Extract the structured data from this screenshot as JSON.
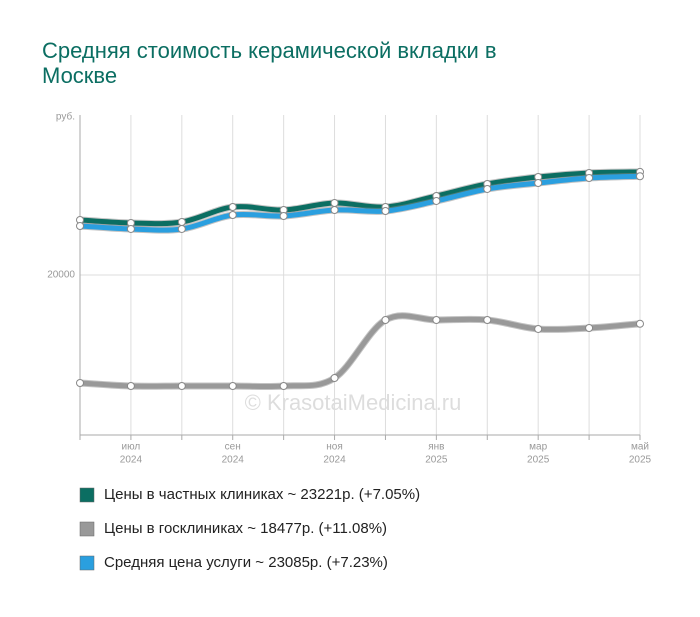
{
  "chart_data": {
    "type": "line",
    "title": [
      "Средняя стоимость керамической вкладки в",
      "Москве"
    ],
    "y_label": "руб.",
    "watermark": "© KrasotaiMedicina.ru",
    "categories": [
      null,
      {
        "month": "июл",
        "year": "2024"
      },
      null,
      {
        "month": "сен",
        "year": "2024"
      },
      null,
      {
        "month": "ноя",
        "year": "2024"
      },
      null,
      {
        "month": "янв",
        "year": "2025"
      },
      null,
      {
        "month": "мар",
        "year": "2025"
      },
      null,
      {
        "month": "май",
        "year": "2025"
      }
    ],
    "ylim": [
      15000,
      25000
    ],
    "yticks": [
      20000
    ],
    "grid": true,
    "series": [
      {
        "name": "Цены в частных клиниках ~ 23221р. (+7.05%)",
        "color": "#0b6e62",
        "values": [
          21719,
          21625,
          21656,
          22125,
          22031,
          22250,
          22125,
          22469,
          22844,
          23063,
          23188,
          23221
        ]
      },
      {
        "name": "Цены в госклиниках ~ 18477р. (+11.08%)",
        "color": "#999999",
        "values": [
          16625,
          16531,
          16531,
          16531,
          16531,
          16781,
          18594,
          18594,
          18594,
          18313,
          18344,
          18477
        ]
      },
      {
        "name": "Средняя цена услуги ~ 23085р. (+7.23%)",
        "color": "#2a9fdf",
        "values": [
          21531,
          21438,
          21438,
          21875,
          21844,
          22031,
          22000,
          22313,
          22688,
          22875,
          23031,
          23085
        ]
      }
    ]
  }
}
